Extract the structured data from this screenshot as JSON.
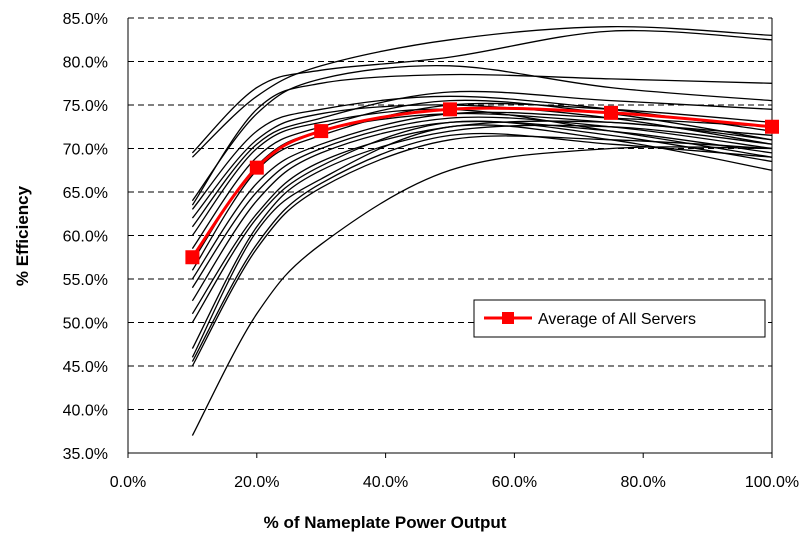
{
  "chart_data": {
    "type": "line",
    "title": "",
    "xlabel": "% of Nameplate Power Output",
    "ylabel": "% Efficiency",
    "xlim": [
      0,
      100
    ],
    "ylim": [
      35,
      85
    ],
    "x_ticks": [
      "0.0%",
      "20.0%",
      "40.0%",
      "60.0%",
      "80.0%",
      "100.0%"
    ],
    "y_ticks": [
      "35.0%",
      "40.0%",
      "45.0%",
      "50.0%",
      "55.0%",
      "60.0%",
      "65.0%",
      "70.0%",
      "75.0%",
      "80.0%",
      "85.0%"
    ],
    "grid": "horizontal dashed",
    "legend": {
      "position": "right-middle",
      "entries": [
        "Average of All Servers"
      ]
    },
    "x": [
      10,
      20,
      30,
      50,
      75,
      100
    ],
    "average_series": {
      "name": "Average of All Servers",
      "color": "#ff0000",
      "marker": "square",
      "values": [
        57.5,
        67.8,
        72.0,
        74.5,
        74.1,
        72.5
      ]
    },
    "server_series": [
      [
        69.5,
        77.0,
        79.0,
        80.5,
        83.5,
        82.5
      ],
      [
        69.0,
        76.0,
        79.5,
        82.5,
        84.0,
        83.0
      ],
      [
        64.0,
        74.0,
        78.0,
        79.5,
        77.0,
        75.5
      ],
      [
        63.5,
        74.5,
        77.5,
        78.5,
        78.0,
        77.5
      ],
      [
        63.0,
        72.0,
        74.5,
        76.0,
        74.5,
        72.0
      ],
      [
        62.0,
        71.0,
        74.0,
        75.0,
        73.5,
        70.5
      ],
      [
        61.0,
        70.5,
        73.5,
        76.5,
        75.5,
        74.5
      ],
      [
        60.0,
        70.0,
        73.0,
        74.5,
        72.0,
        69.0
      ],
      [
        58.5,
        69.0,
        72.5,
        75.5,
        74.0,
        71.0
      ],
      [
        57.0,
        68.0,
        72.0,
        74.0,
        73.0,
        71.5
      ],
      [
        56.0,
        67.5,
        71.5,
        75.0,
        74.5,
        73.0
      ],
      [
        55.0,
        66.0,
        70.5,
        74.0,
        73.5,
        72.5
      ],
      [
        54.0,
        65.0,
        70.0,
        73.5,
        72.5,
        70.0
      ],
      [
        52.5,
        64.0,
        69.5,
        73.0,
        72.0,
        69.5
      ],
      [
        51.0,
        62.5,
        68.5,
        72.5,
        73.0,
        71.0
      ],
      [
        50.0,
        62.0,
        68.0,
        73.0,
        71.5,
        68.5
      ],
      [
        47.0,
        61.0,
        67.5,
        72.0,
        72.5,
        70.5
      ],
      [
        46.0,
        60.5,
        66.5,
        72.5,
        71.0,
        67.5
      ],
      [
        45.5,
        59.0,
        66.0,
        71.5,
        70.5,
        69.0
      ],
      [
        45.0,
        58.5,
        65.5,
        71.0,
        71.0,
        70.0
      ],
      [
        37.0,
        51.0,
        59.0,
        67.5,
        70.0,
        70.0
      ]
    ]
  }
}
